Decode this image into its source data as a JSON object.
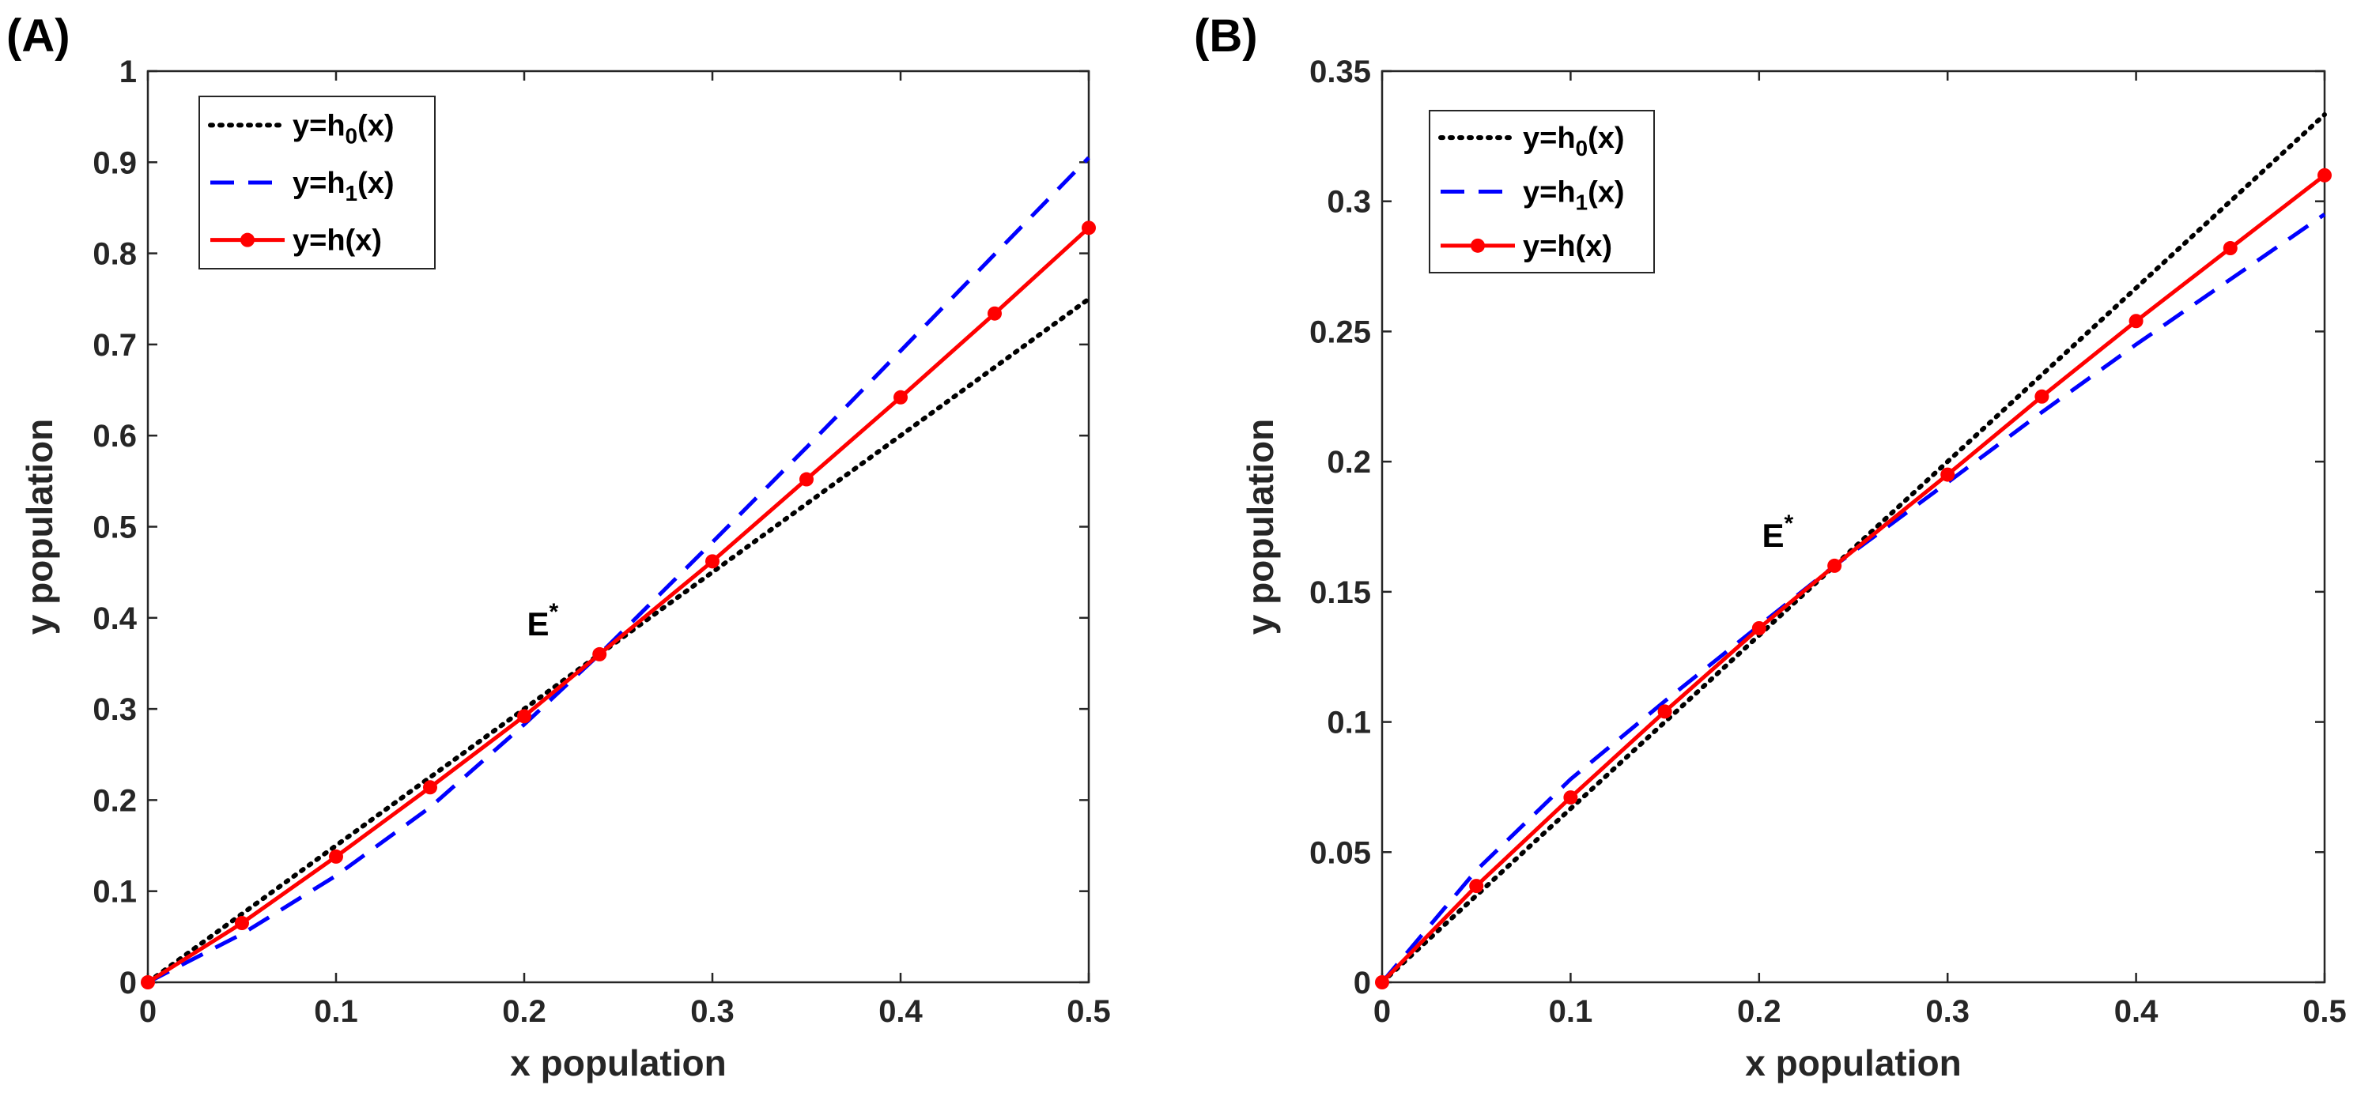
{
  "chart_data": [
    {
      "type": "line",
      "panel_label": "(A)",
      "xlabel": "x population",
      "ylabel": "y population",
      "xlim": [
        0,
        0.5
      ],
      "ylim": [
        0,
        1
      ],
      "xticks": [
        0,
        0.1,
        0.2,
        0.3,
        0.4,
        0.5
      ],
      "xtick_labels": [
        "0",
        "0.1",
        "0.2",
        "0.3",
        "0.4",
        "0.5"
      ],
      "yticks": [
        0,
        0.1,
        0.2,
        0.3,
        0.4,
        0.5,
        0.6,
        0.7,
        0.8,
        0.9,
        1
      ],
      "ytick_labels": [
        "0",
        "0.1",
        "0.2",
        "0.3",
        "0.4",
        "0.5",
        "0.6",
        "0.7",
        "0.8",
        "0.9",
        "1"
      ],
      "legend_position": "top-left",
      "annotation": {
        "base": "E",
        "sup": "*",
        "x": 0.24,
        "y": 0.36
      },
      "series": [
        {
          "name": "h0",
          "legend_main": "y=h",
          "legend_sub": "0",
          "legend_tail": "(x)",
          "style": "dotted",
          "color": "#000000",
          "markers": false,
          "x": [
            0,
            0.1,
            0.2,
            0.24,
            0.3,
            0.4,
            0.5
          ],
          "y": [
            0,
            0.15,
            0.3,
            0.36,
            0.45,
            0.6,
            0.75
          ]
        },
        {
          "name": "h1",
          "legend_main": "y=h",
          "legend_sub": "1",
          "legend_tail": "(x)",
          "style": "dashed",
          "color": "#0000ff",
          "markers": false,
          "x": [
            0,
            0.05,
            0.1,
            0.15,
            0.2,
            0.24,
            0.3,
            0.35,
            0.4,
            0.45,
            0.5
          ],
          "y": [
            0,
            0.053,
            0.117,
            0.192,
            0.283,
            0.36,
            0.483,
            0.587,
            0.693,
            0.799,
            0.905
          ]
        },
        {
          "name": "h",
          "legend_main": "y=h(x)",
          "legend_sub": "",
          "legend_tail": "",
          "style": "solid",
          "color": "#ff0000",
          "markers": true,
          "x": [
            0,
            0.05,
            0.1,
            0.15,
            0.2,
            0.24,
            0.3,
            0.35,
            0.4,
            0.45,
            0.5
          ],
          "y": [
            0,
            0.065,
            0.138,
            0.214,
            0.292,
            0.36,
            0.462,
            0.552,
            0.642,
            0.734,
            0.828
          ]
        }
      ]
    },
    {
      "type": "line",
      "panel_label": "(B)",
      "xlabel": "x population",
      "ylabel": "y population",
      "xlim": [
        0,
        0.5
      ],
      "ylim": [
        0,
        0.35
      ],
      "xticks": [
        0,
        0.1,
        0.2,
        0.3,
        0.4,
        0.5
      ],
      "xtick_labels": [
        "0",
        "0.1",
        "0.2",
        "0.3",
        "0.4",
        "0.5"
      ],
      "yticks": [
        0,
        0.05,
        0.1,
        0.15,
        0.2,
        0.25,
        0.3,
        0.35
      ],
      "ytick_labels": [
        "0",
        "0.05",
        "0.1",
        "0.15",
        "0.2",
        "0.25",
        "0.3",
        "0.35"
      ],
      "legend_position": "top-left",
      "annotation": {
        "base": "E",
        "sup": "*",
        "x": 0.24,
        "y": 0.16
      },
      "series": [
        {
          "name": "h0",
          "legend_main": "y=h",
          "legend_sub": "0",
          "legend_tail": "(x)",
          "style": "dotted",
          "color": "#000000",
          "markers": false,
          "x": [
            0,
            0.1,
            0.2,
            0.24,
            0.3,
            0.4,
            0.5
          ],
          "y": [
            0,
            0.0667,
            0.1333,
            0.16,
            0.2,
            0.2667,
            0.3333
          ]
        },
        {
          "name": "h1",
          "legend_main": "y=h",
          "legend_sub": "1",
          "legend_tail": "(x)",
          "style": "dashed",
          "color": "#0000ff",
          "markers": false,
          "x": [
            0,
            0.05,
            0.1,
            0.15,
            0.2,
            0.24,
            0.3,
            0.35,
            0.4,
            0.45,
            0.5
          ],
          "y": [
            0,
            0.043,
            0.078,
            0.108,
            0.137,
            0.16,
            0.192,
            0.219,
            0.245,
            0.27,
            0.295
          ]
        },
        {
          "name": "h",
          "legend_main": "y=h(x)",
          "legend_sub": "",
          "legend_tail": "",
          "style": "solid",
          "color": "#ff0000",
          "markers": true,
          "x": [
            0,
            0.05,
            0.1,
            0.15,
            0.2,
            0.24,
            0.3,
            0.35,
            0.4,
            0.45,
            0.5
          ],
          "y": [
            0,
            0.037,
            0.071,
            0.104,
            0.136,
            0.16,
            0.195,
            0.225,
            0.254,
            0.282,
            0.31
          ]
        }
      ]
    }
  ]
}
